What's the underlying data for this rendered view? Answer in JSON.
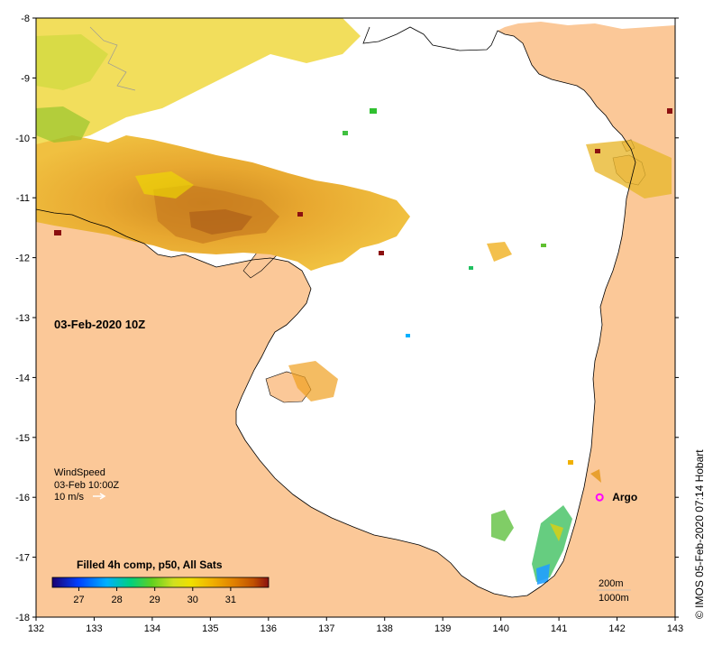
{
  "map": {
    "date_label": "03-Feb-2020 10Z",
    "x_ticks": [
      "132",
      "133",
      "134",
      "135",
      "136",
      "137",
      "138",
      "139",
      "140",
      "141",
      "142",
      "143"
    ],
    "y_ticks": [
      "-8",
      "-9",
      "-10",
      "-11",
      "-12",
      "-13",
      "-14",
      "-15",
      "-16",
      "-17",
      "-18"
    ],
    "lon_range": [
      132,
      143
    ],
    "lat_range": [
      -18,
      -8
    ]
  },
  "wind": {
    "title": "WindSpeed",
    "time": "03-Feb 10:00Z",
    "scale": "10 m/s"
  },
  "colorbar": {
    "title": "Filled 4h comp, p50, All Sats",
    "ticks": [
      "27",
      "28",
      "29",
      "30",
      "31"
    ],
    "range": [
      26.3,
      32
    ]
  },
  "argo": {
    "label": "Argo",
    "lon": 141.7,
    "lat": -16.0
  },
  "depth_legend": {
    "contour_1": "200m",
    "contour_2": "1000m"
  },
  "credit": "© IMOS 05-Feb-2020 07:14 Hobart",
  "colors": {
    "land": "#fbc898",
    "ocean": "#ffffff",
    "argo": "#ff00ff",
    "colormap": [
      "#1a0070",
      "#0030ff",
      "#00b0ff",
      "#00d080",
      "#60d020",
      "#c0e020",
      "#f0e000",
      "#f0b000",
      "#e08000",
      "#c06000",
      "#8b1010"
    ]
  }
}
